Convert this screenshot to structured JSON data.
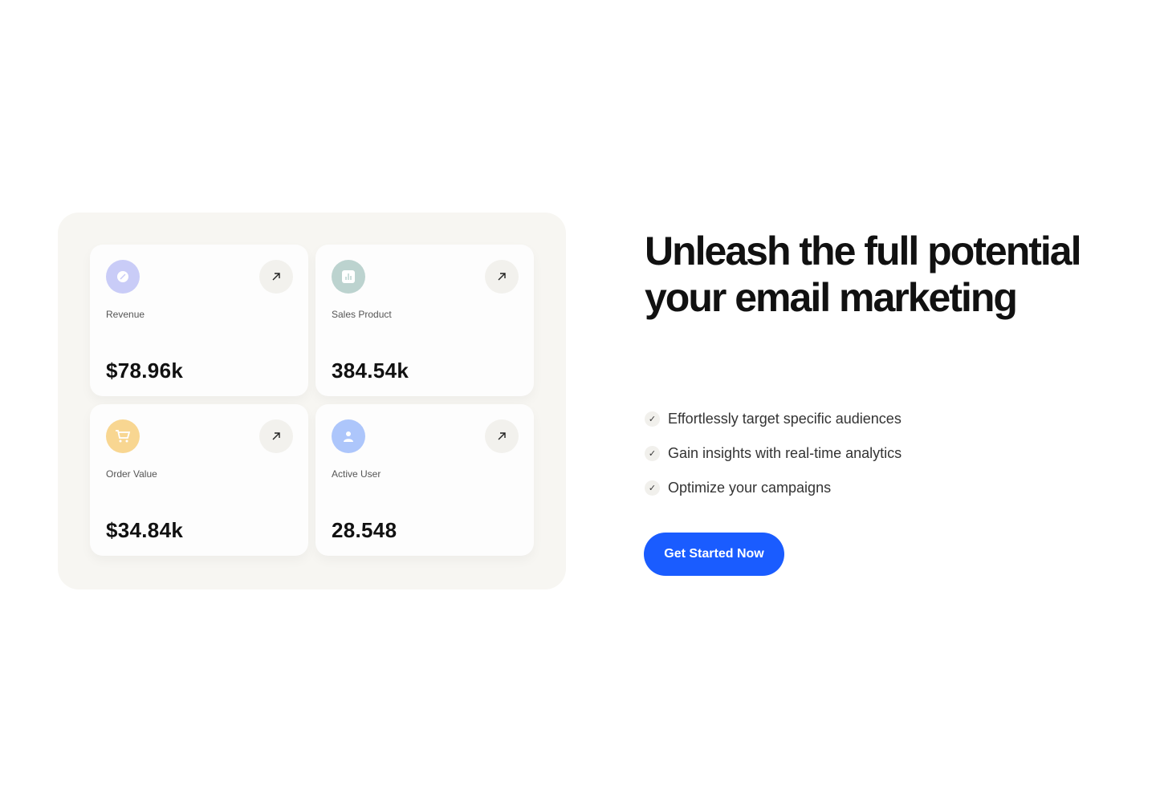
{
  "stats": [
    {
      "label": "Revenue",
      "value": "$78.96k",
      "icon": "badge-percent-icon",
      "color": "#c9ccf7"
    },
    {
      "label": "Sales Product",
      "value": "384.54k",
      "icon": "bar-chart-icon",
      "color": "#bcd3cf"
    },
    {
      "label": "Order Value",
      "value": "$34.84k",
      "icon": "cart-icon",
      "color": "#f8d691"
    },
    {
      "label": "Active User",
      "value": "28.548",
      "icon": "user-icon",
      "color": "#adc6fb"
    }
  ],
  "hero": {
    "title_line1": "Unleash the full potential",
    "title_line2": "your email marketing"
  },
  "features": [
    "Effortlessly target specific audiences",
    "Gain insights with real-time analytics",
    "Optimize your campaigns"
  ],
  "cta": {
    "label": "Get Started Now",
    "color": "#1a5cff"
  }
}
